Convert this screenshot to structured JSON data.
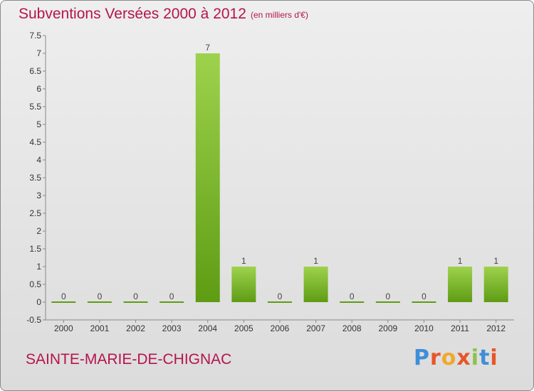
{
  "header": {
    "title": "Subventions Versées 2000 à 2012",
    "unit": "(en milliers d'€)"
  },
  "footer": {
    "commune": "SAINTE-MARIE-DE-CHIGNAC",
    "logo_text": "Proxiti"
  },
  "colors": {
    "accent": "#b5144e",
    "bar_light": "#9ed24d",
    "bar_dark": "#5e9c14",
    "logo_letters": [
      "#3f8ed8",
      "#e8562a",
      "#f0a92a",
      "#e8562a",
      "#8bc34a",
      "#3f8ed8",
      "#e8562a"
    ]
  },
  "chart_data": {
    "type": "bar",
    "title": "Subventions Versées 2000 à 2012",
    "xlabel": "",
    "ylabel": "",
    "categories": [
      "2000",
      "2001",
      "2002",
      "2003",
      "2004",
      "2005",
      "2006",
      "2007",
      "2008",
      "2009",
      "2010",
      "2011",
      "2012"
    ],
    "values": [
      0,
      0,
      0,
      0,
      7,
      1,
      0,
      1,
      0,
      0,
      0,
      1,
      1
    ],
    "data_labels": [
      "0",
      "0",
      "0",
      "0",
      "7",
      "1",
      "0",
      "1",
      "0",
      "0",
      "0",
      "1",
      "1"
    ],
    "ylim": [
      -0.5,
      7.5
    ],
    "y_ticks": [
      "-0.5",
      "0",
      "0.5",
      "1",
      "1.5",
      "2",
      "2.5",
      "3",
      "3.5",
      "4",
      "4.5",
      "5",
      "5.5",
      "6",
      "6.5",
      "7",
      "7.5"
    ],
    "grid": false,
    "legend": "none"
  }
}
